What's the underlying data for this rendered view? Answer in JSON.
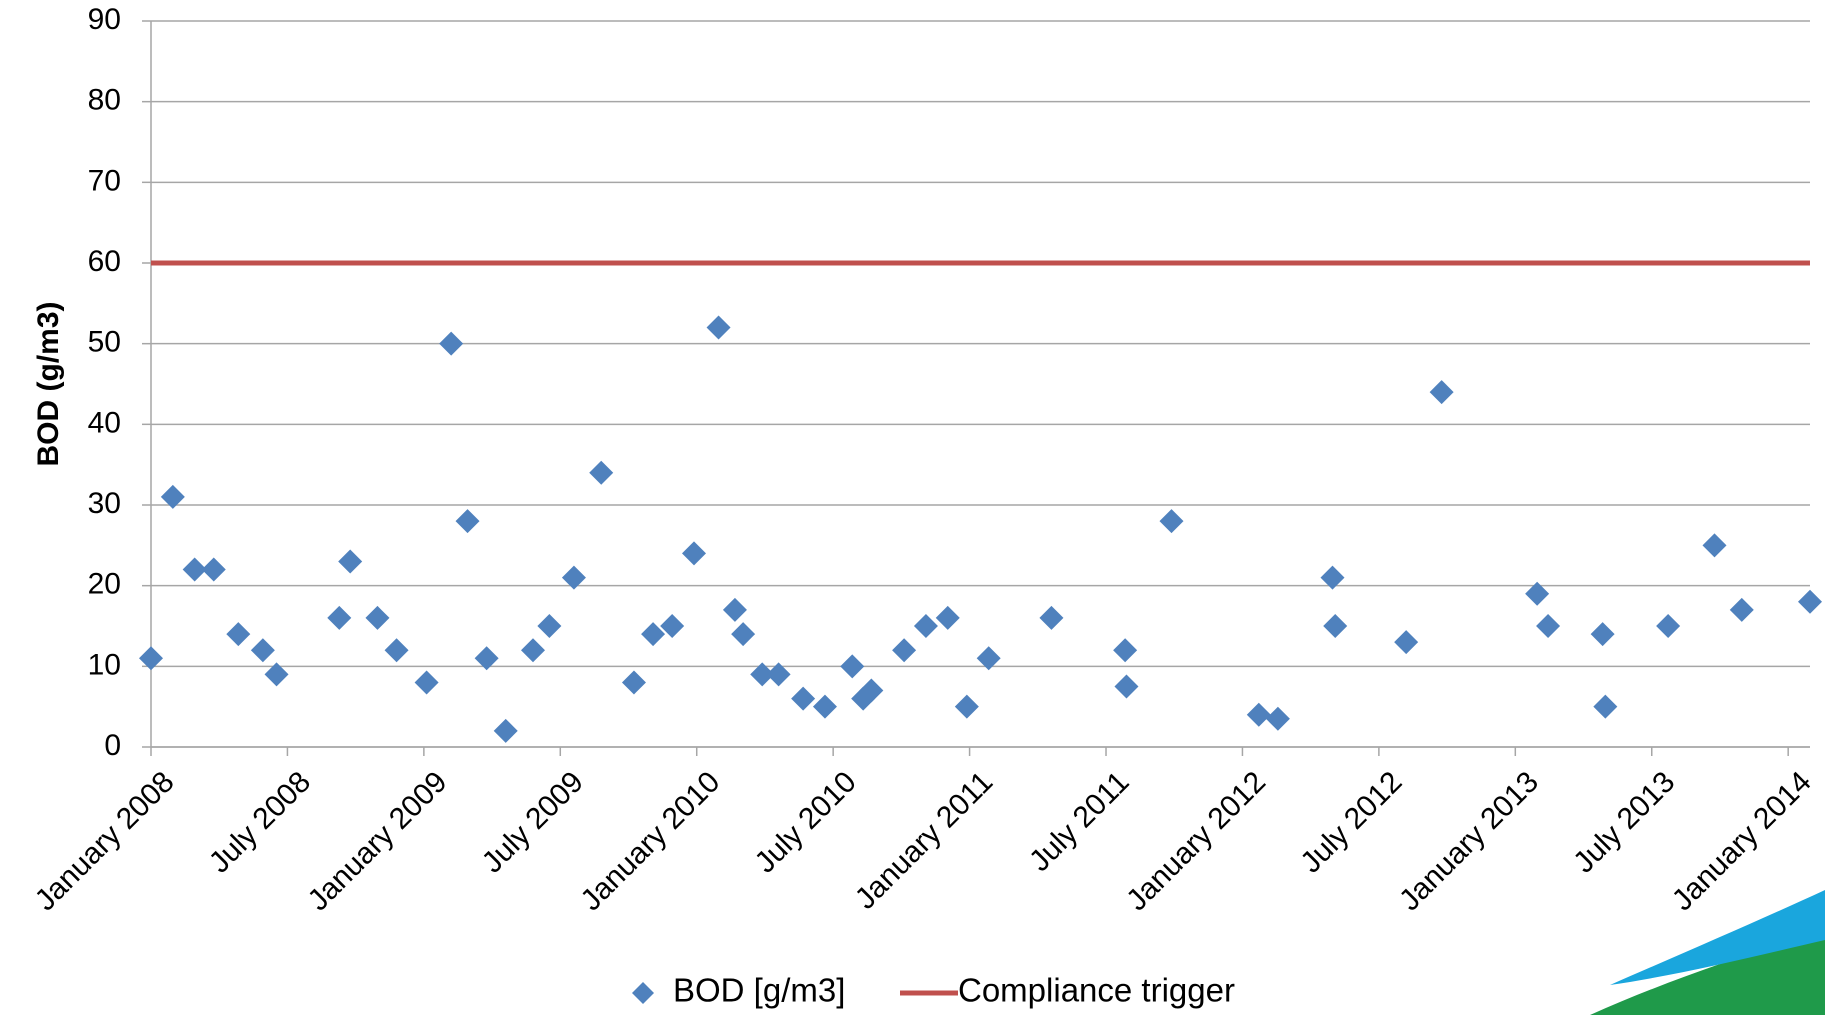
{
  "chart_data": {
    "type": "scatter",
    "y_label": "BOD (g/m3)",
    "xlim": [
      2008,
      2014.08
    ],
    "xticks": [
      {
        "value": 2008,
        "label": "January 2008"
      },
      {
        "value": 2008.5,
        "label": "July 2008"
      },
      {
        "value": 2009,
        "label": "January 2009"
      },
      {
        "value": 2009.5,
        "label": "July 2009"
      },
      {
        "value": 2010,
        "label": "January 2010"
      },
      {
        "value": 2010.5,
        "label": "July 2010"
      },
      {
        "value": 2011,
        "label": "January 2011"
      },
      {
        "value": 2011.5,
        "label": "July 2011"
      },
      {
        "value": 2012,
        "label": "January 2012"
      },
      {
        "value": 2012.5,
        "label": "July 2012"
      },
      {
        "value": 2013,
        "label": "January 2013"
      },
      {
        "value": 2013.5,
        "label": "July 2013"
      },
      {
        "value": 2014,
        "label": "January 2014"
      }
    ],
    "ylim": [
      0,
      90
    ],
    "yticks": [
      0,
      10,
      20,
      30,
      40,
      50,
      60,
      70,
      80,
      90
    ],
    "grid": true,
    "legend": "bottom",
    "series": [
      {
        "name": "BOD [g/m3]",
        "color": "#4f81bd",
        "marker": "diamond",
        "x": [
          2008.0,
          2008.08,
          2008.16,
          2008.23,
          2008.32,
          2008.41,
          2008.46,
          2008.69,
          2008.73,
          2008.83,
          2008.9,
          2009.01,
          2009.1,
          2009.16,
          2009.23,
          2009.3,
          2009.4,
          2009.46,
          2009.55,
          2009.65,
          2009.77,
          2009.84,
          2009.91,
          2009.99,
          2010.08,
          2010.14,
          2010.17,
          2010.24,
          2010.3,
          2010.39,
          2010.47,
          2010.57,
          2010.61,
          2010.64,
          2010.76,
          2010.84,
          2010.92,
          2010.99,
          2011.07,
          2011.3,
          2011.57,
          2011.575,
          2011.74,
          2012.06,
          2012.13,
          2012.33,
          2012.34,
          2012.6,
          2012.73,
          2013.08,
          2013.12,
          2013.32,
          2013.33,
          2013.56,
          2013.73,
          2013.83,
          2014.08
        ],
        "values": [
          11,
          31,
          22,
          22,
          14,
          12,
          9,
          16,
          23,
          16,
          12,
          8,
          50,
          28,
          11,
          2,
          12,
          15,
          21,
          34,
          8,
          14,
          15,
          24,
          52,
          17,
          14,
          9,
          9,
          6,
          5,
          10,
          6,
          7,
          12,
          15,
          16,
          5,
          11,
          16,
          12,
          7.5,
          28,
          4,
          3.5,
          21,
          15,
          13,
          44,
          19,
          15,
          14,
          5,
          15,
          25,
          17,
          18
        ]
      },
      {
        "name": "Compliance trigger",
        "color": "#c0504d",
        "marker": "line",
        "x": [
          2008,
          2014.08
        ],
        "values": [
          60,
          60
        ]
      }
    ]
  }
}
